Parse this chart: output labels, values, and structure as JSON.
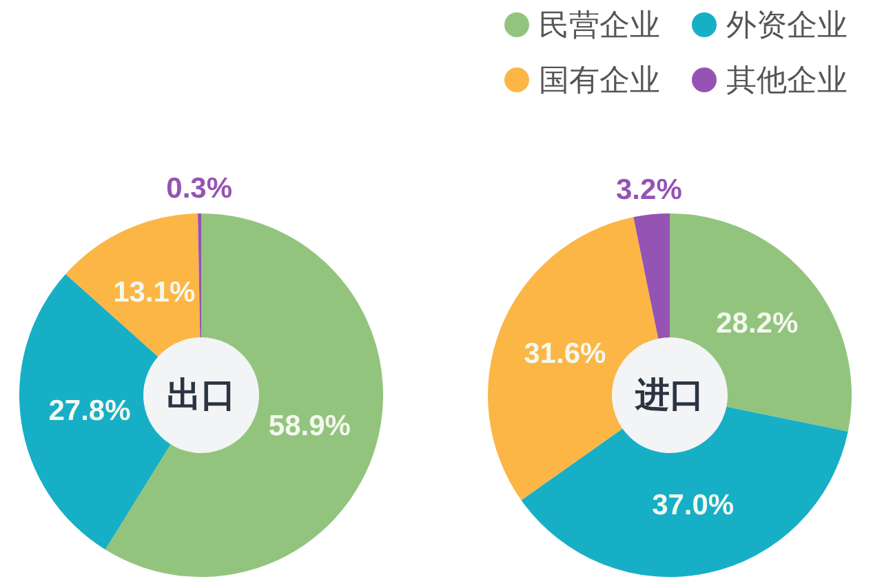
{
  "chart_data": {
    "type": "donut",
    "categories": [
      "民营企业",
      "外资企业",
      "国有企业",
      "其他企业"
    ],
    "colors": [
      "#93c47e",
      "#17afc6",
      "#fbb646",
      "#9553b3"
    ],
    "legend": "top right",
    "series": [
      {
        "name": "出口",
        "values": [
          58.9,
          27.8,
          13.1,
          0.3
        ],
        "value_labels": [
          "58.9%",
          "27.8%",
          "13.1%",
          "0.3%"
        ]
      },
      {
        "name": "进口",
        "values": [
          28.2,
          37.0,
          31.6,
          3.2
        ],
        "value_labels": [
          "28.2%",
          "37.0%",
          "31.6%",
          "3.2%"
        ]
      }
    ]
  }
}
